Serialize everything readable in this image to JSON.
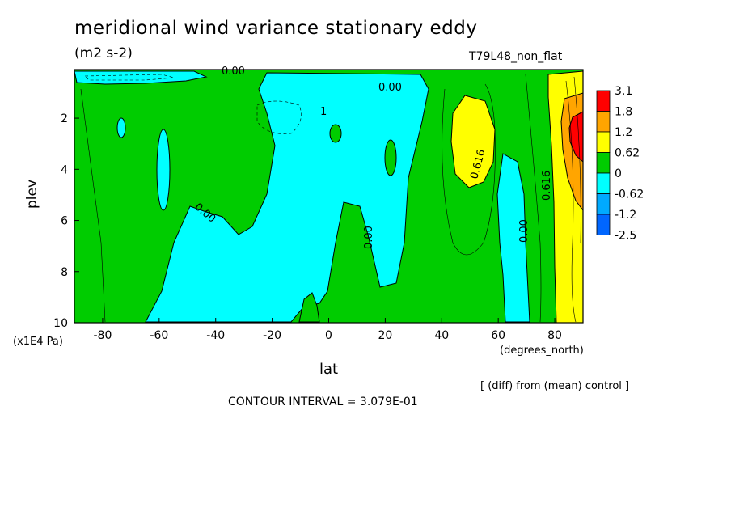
{
  "chart_data": {
    "type": "heatmap",
    "title": "meridional wind variance  stationary eddy",
    "units": "(m2 s-2)",
    "run_label": "T79L48_non_flat",
    "xlabel": "lat",
    "x_units": "(degrees_north)",
    "ylabel": "plev",
    "y_units": "(x1E4 Pa)",
    "xlim": [
      -90,
      90
    ],
    "ylim": [
      10,
      0.1
    ],
    "x_ticks": [
      -80,
      -60,
      -40,
      -20,
      0,
      20,
      40,
      60,
      80
    ],
    "x_tick_labels": [
      "-80",
      "-60",
      "-40",
      "-20",
      "0",
      "20",
      "40",
      "60",
      "80"
    ],
    "y_ticks": [
      2,
      4,
      6,
      8,
      10
    ],
    "y_tick_labels": [
      "2",
      "4",
      "6",
      "8",
      "10"
    ],
    "legend": {
      "placement": "right",
      "levels": [
        "3.1",
        "1.8",
        "1.2",
        "0.62",
        "0",
        "-0.62",
        "-1.2",
        "-2.5"
      ],
      "colors": [
        "#ff0000",
        "#ffa500",
        "#ffff00",
        "#00cc00",
        "#00ffff",
        "#00aaff",
        "#0066ff"
      ]
    },
    "contour_labels": [
      "0.00",
      "0.00",
      "0.00",
      "0.00",
      "0.00",
      "0.616",
      "0.616",
      "1"
    ],
    "note": "[ (diff) from (mean) control ]",
    "contour_interval": "CONTOUR INTERVAL = 3.079E-01"
  }
}
